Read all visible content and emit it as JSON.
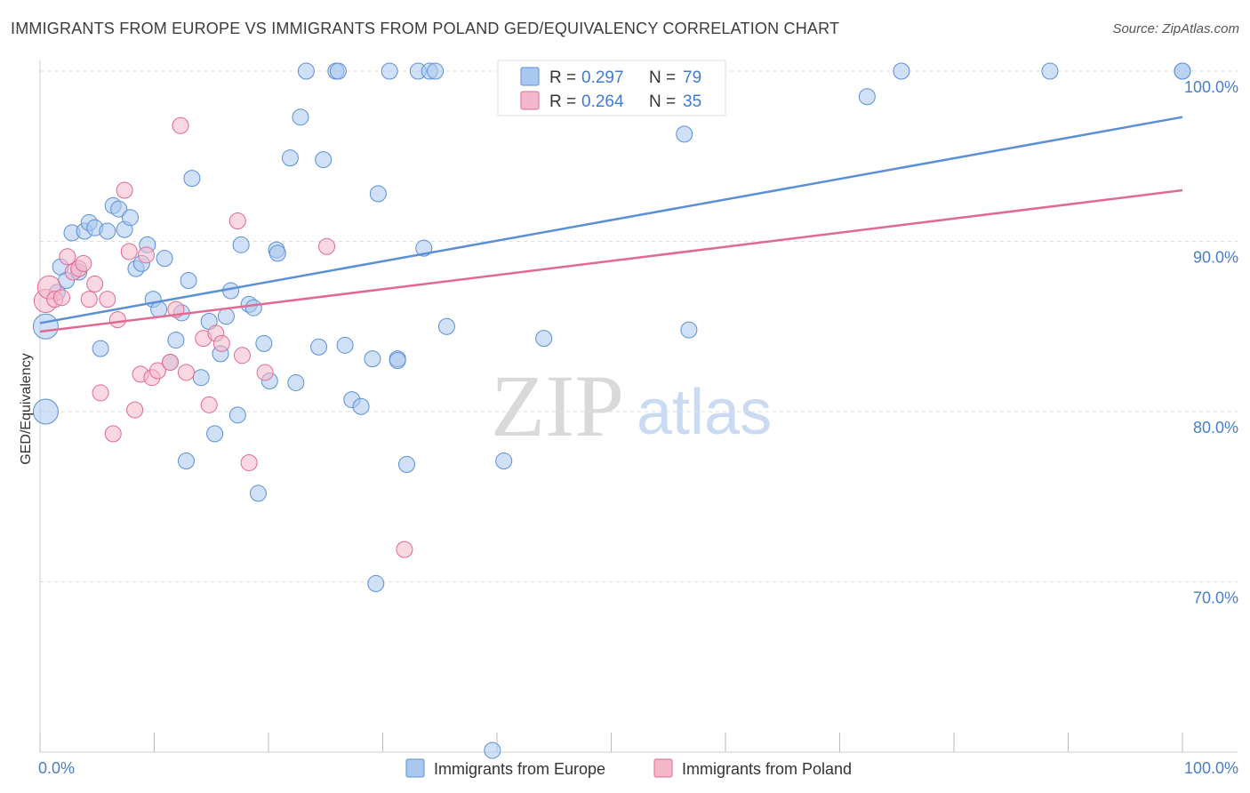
{
  "title": "IMMIGRANTS FROM EUROPE VS IMMIGRANTS FROM POLAND GED/EQUIVALENCY CORRELATION CHART",
  "source": "Source: ZipAtlas.com",
  "watermark": {
    "zip": "ZIP",
    "atlas": "atlas"
  },
  "stats": [
    {
      "r_label": "R =",
      "r": "0.297",
      "n_label": "N =",
      "n": "79",
      "color": "#a9c8f0"
    },
    {
      "r_label": "R =",
      "r": "0.264",
      "n_label": "N =",
      "n": "35",
      "color": "#f5b8cb"
    }
  ],
  "chart_data": {
    "type": "scatter",
    "xlabel": "",
    "ylabel": "GED/Equivalency",
    "x_tick_labels": [
      "0.0%",
      "100.0%"
    ],
    "y_tick_labels": [
      "70.0%",
      "80.0%",
      "90.0%",
      "100.0%"
    ],
    "xlim": [
      0,
      100
    ],
    "ylim": [
      60,
      100
    ],
    "grid": true,
    "legend_position": "bottom",
    "series": [
      {
        "name": "Immigrants from Europe",
        "color": "#5b8fd6",
        "fill": "#a9c8f0",
        "trend": {
          "x0": 0,
          "y0": 85.2,
          "x1": 100,
          "y1": 97.3
        },
        "points": [
          [
            0.5,
            85.0
          ],
          [
            0.5,
            80.0
          ],
          [
            1.5,
            87.0
          ],
          [
            1.8,
            88.5
          ],
          [
            2.3,
            87.7
          ],
          [
            2.8,
            90.5
          ],
          [
            3.4,
            88.2
          ],
          [
            3.9,
            90.6
          ],
          [
            4.3,
            91.1
          ],
          [
            4.8,
            90.8
          ],
          [
            5.3,
            83.7
          ],
          [
            5.9,
            90.6
          ],
          [
            6.4,
            92.1
          ],
          [
            6.9,
            91.9
          ],
          [
            7.4,
            90.7
          ],
          [
            7.9,
            91.4
          ],
          [
            8.4,
            88.4
          ],
          [
            8.9,
            88.7
          ],
          [
            9.4,
            89.8
          ],
          [
            9.9,
            86.6
          ],
          [
            10.4,
            86.0
          ],
          [
            10.9,
            89.0
          ],
          [
            11.4,
            82.9
          ],
          [
            11.9,
            84.2
          ],
          [
            12.4,
            85.8
          ],
          [
            12.8,
            77.1
          ],
          [
            13.0,
            87.7
          ],
          [
            13.3,
            93.7
          ],
          [
            14.1,
            82.0
          ],
          [
            14.8,
            85.3
          ],
          [
            15.3,
            78.7
          ],
          [
            15.8,
            83.4
          ],
          [
            16.3,
            85.6
          ],
          [
            16.7,
            87.1
          ],
          [
            17.3,
            79.8
          ],
          [
            17.6,
            89.8
          ],
          [
            18.3,
            86.3
          ],
          [
            18.7,
            86.1
          ],
          [
            19.1,
            75.2
          ],
          [
            19.6,
            84.0
          ],
          [
            20.1,
            81.8
          ],
          [
            20.7,
            89.5
          ],
          [
            20.8,
            89.3
          ],
          [
            21.9,
            94.9
          ],
          [
            22.4,
            81.7
          ],
          [
            22.8,
            97.3
          ],
          [
            23.3,
            100
          ],
          [
            24.4,
            83.8
          ],
          [
            24.8,
            94.8
          ],
          [
            25.9,
            100
          ],
          [
            26.1,
            100
          ],
          [
            26.7,
            83.9
          ],
          [
            27.3,
            80.7
          ],
          [
            28.1,
            80.3
          ],
          [
            29.1,
            83.1
          ],
          [
            29.4,
            69.9
          ],
          [
            29.6,
            92.8
          ],
          [
            30.6,
            100
          ],
          [
            31.3,
            83.1
          ],
          [
            31.3,
            83.0
          ],
          [
            32.1,
            76.9
          ],
          [
            33.1,
            100
          ],
          [
            33.6,
            89.6
          ],
          [
            34.1,
            100
          ],
          [
            34.6,
            100
          ],
          [
            35.6,
            85.0
          ],
          [
            39.6,
            60.1
          ],
          [
            40.6,
            77.1
          ],
          [
            44.1,
            84.3
          ],
          [
            45.6,
            100
          ],
          [
            47.6,
            100
          ],
          [
            52.4,
            100
          ],
          [
            56.4,
            96.3
          ],
          [
            56.8,
            84.8
          ],
          [
            72.4,
            98.5
          ],
          [
            75.4,
            100
          ],
          [
            88.4,
            100
          ],
          [
            100,
            100
          ],
          [
            100,
            100
          ]
        ]
      },
      {
        "name": "Immigrants from Poland",
        "color": "#e06a92",
        "fill": "#f5b8cb",
        "trend": {
          "x0": 0,
          "y0": 84.7,
          "x1": 100,
          "y1": 93.0
        },
        "points": [
          [
            0.5,
            86.5
          ],
          [
            0.8,
            87.3
          ],
          [
            1.3,
            86.6
          ],
          [
            1.9,
            86.7
          ],
          [
            2.4,
            89.1
          ],
          [
            2.9,
            88.2
          ],
          [
            3.4,
            88.4
          ],
          [
            3.8,
            88.7
          ],
          [
            4.3,
            86.6
          ],
          [
            4.8,
            87.5
          ],
          [
            5.3,
            81.1
          ],
          [
            5.9,
            86.6
          ],
          [
            6.4,
            78.7
          ],
          [
            6.8,
            85.4
          ],
          [
            7.4,
            93.0
          ],
          [
            7.8,
            89.4
          ],
          [
            8.3,
            80.1
          ],
          [
            8.8,
            82.2
          ],
          [
            9.3,
            89.2
          ],
          [
            9.8,
            82.0
          ],
          [
            10.3,
            82.4
          ],
          [
            11.4,
            82.9
          ],
          [
            11.9,
            86.0
          ],
          [
            12.3,
            96.8
          ],
          [
            12.8,
            82.3
          ],
          [
            14.3,
            84.3
          ],
          [
            14.8,
            80.4
          ],
          [
            15.4,
            84.6
          ],
          [
            15.9,
            84.0
          ],
          [
            17.3,
            91.2
          ],
          [
            17.7,
            83.3
          ],
          [
            18.3,
            77.0
          ],
          [
            19.7,
            82.3
          ],
          [
            25.1,
            89.7
          ],
          [
            31.9,
            71.9
          ]
        ]
      }
    ]
  }
}
